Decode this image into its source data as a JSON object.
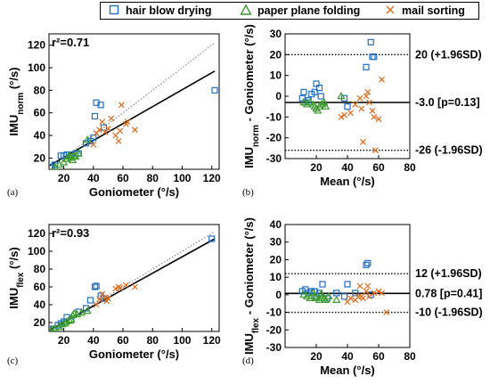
{
  "legend": {
    "items": [
      {
        "label": "hair blow drying",
        "marker": "square",
        "color": "#1f6fc5"
      },
      {
        "label": "paper plane folding",
        "marker": "triangle",
        "color": "#3a9a2a"
      },
      {
        "label": "mail sorting",
        "marker": "x",
        "color": "#e06a1a"
      }
    ]
  },
  "chart_data": [
    {
      "type": "scatter",
      "panel_label": "(a)",
      "annotation": "r²=0.71",
      "xlabel": "Goniometer (°/s)",
      "ylabel_main": "IMU",
      "ylabel_sub": "norm",
      "ylabel_tail": " (°/s)",
      "xlim": [
        10,
        125
      ],
      "ylim": [
        10,
        130
      ],
      "xticks": [
        20,
        40,
        60,
        80,
        100,
        120
      ],
      "yticks": [
        20,
        40,
        60,
        80,
        100,
        120
      ],
      "lines": [
        {
          "kind": "regression",
          "style": "solid",
          "x": [
            10,
            122
          ],
          "y": [
            13,
            97
          ]
        },
        {
          "kind": "identity",
          "style": "dotted",
          "x": [
            10,
            122
          ],
          "y": [
            10,
            122
          ]
        }
      ],
      "series": [
        {
          "name": "hair blow drying",
          "points": [
            [
              11,
              12
            ],
            [
              12,
              12
            ],
            [
              14,
              14
            ],
            [
              18,
              22
            ],
            [
              20,
              22
            ],
            [
              22,
              23
            ],
            [
              25,
              23
            ],
            [
              28,
              24
            ],
            [
              30,
              24
            ],
            [
              35,
              33
            ],
            [
              38,
              35
            ],
            [
              40,
              38
            ],
            [
              41,
              57
            ],
            [
              42,
              69
            ],
            [
              45,
              67
            ],
            [
              47,
              47
            ],
            [
              122,
              80
            ]
          ]
        },
        {
          "name": "paper plane folding",
          "points": [
            [
              14,
              12
            ],
            [
              17,
              14
            ],
            [
              20,
              16
            ],
            [
              22,
              19
            ],
            [
              23,
              21
            ],
            [
              24,
              22
            ],
            [
              25,
              20
            ],
            [
              26,
              18
            ],
            [
              27,
              22
            ],
            [
              28,
              21
            ],
            [
              30,
              24
            ],
            [
              36,
              36
            ]
          ]
        },
        {
          "name": "mail sorting",
          "points": [
            [
              40,
              32
            ],
            [
              42,
              42
            ],
            [
              44,
              45
            ],
            [
              46,
              52
            ],
            [
              48,
              43
            ],
            [
              50,
              46
            ],
            [
              52,
              55
            ],
            [
              55,
              40
            ],
            [
              57,
              35
            ],
            [
              58,
              44
            ],
            [
              59,
              67
            ],
            [
              62,
              50
            ],
            [
              63,
              52
            ],
            [
              68,
              45
            ]
          ]
        }
      ]
    },
    {
      "type": "scatter",
      "panel_label": "(b)",
      "xlabel": "Mean (°/s)",
      "ylabel_main": "IMU",
      "ylabel_sub": "norm",
      "ylabel_tail": " - Goniometer (°/s)",
      "xlim": [
        0,
        80
      ],
      "ylim": [
        -30,
        30
      ],
      "xticks": [
        20,
        40,
        60,
        80
      ],
      "yticks": [
        -30,
        -20,
        -10,
        0,
        10,
        20,
        30
      ],
      "hlines": [
        {
          "y": 20,
          "style": "dotted",
          "label": "20 (+1.96SD)"
        },
        {
          "y": -3,
          "style": "solid",
          "label": "-3.0 [p=0.13]"
        },
        {
          "y": -26,
          "style": "dotted",
          "label": "-26 (-1.96SD)"
        }
      ],
      "series": [
        {
          "name": "hair blow drying",
          "points": [
            [
              11,
              -1
            ],
            [
              12,
              2
            ],
            [
              13,
              -3
            ],
            [
              15,
              -2
            ],
            [
              17,
              1
            ],
            [
              19,
              2
            ],
            [
              20,
              6
            ],
            [
              22,
              4
            ],
            [
              23,
              0
            ],
            [
              38,
              -1
            ],
            [
              40,
              -5
            ],
            [
              52,
              14
            ],
            [
              55,
              26
            ],
            [
              57,
              19
            ],
            [
              56,
              19
            ]
          ]
        },
        {
          "name": "paper plane folding",
          "points": [
            [
              12,
              -3
            ],
            [
              14,
              -4
            ],
            [
              16,
              -3
            ],
            [
              18,
              -4
            ],
            [
              19,
              -5
            ],
            [
              20,
              -6
            ],
            [
              21,
              -7
            ],
            [
              22,
              -5
            ],
            [
              23,
              -4
            ],
            [
              24,
              -4
            ],
            [
              25,
              -3
            ],
            [
              26,
              -5
            ],
            [
              36,
              0
            ]
          ]
        },
        {
          "name": "mail sorting",
          "points": [
            [
              36,
              -10
            ],
            [
              38,
              -9
            ],
            [
              42,
              -8
            ],
            [
              45,
              -4
            ],
            [
              48,
              -1
            ],
            [
              49,
              -6
            ],
            [
              50,
              -22
            ],
            [
              52,
              0
            ],
            [
              53,
              2
            ],
            [
              54,
              -3
            ],
            [
              56,
              -7
            ],
            [
              57,
              -10
            ],
            [
              58,
              -26
            ],
            [
              60,
              -11
            ],
            [
              62,
              8
            ]
          ]
        }
      ]
    },
    {
      "type": "scatter",
      "panel_label": "(c)",
      "annotation": "r²=0.93",
      "xlabel": "Goniometer (°/s)",
      "ylabel_main": "IMU",
      "ylabel_sub": "flex",
      "ylabel_tail": " (°/s)",
      "xlim": [
        10,
        125
      ],
      "ylim": [
        10,
        130
      ],
      "xticks": [
        20,
        40,
        60,
        80,
        100,
        120
      ],
      "yticks": [
        20,
        40,
        60,
        80,
        100,
        120
      ],
      "lines": [
        {
          "kind": "regression",
          "style": "solid",
          "x": [
            10,
            122
          ],
          "y": [
            11,
            114
          ]
        },
        {
          "kind": "identity",
          "style": "dotted",
          "x": [
            10,
            122
          ],
          "y": [
            10,
            122
          ]
        }
      ],
      "series": [
        {
          "name": "hair blow drying",
          "points": [
            [
              11,
              12
            ],
            [
              13,
              13
            ],
            [
              16,
              17
            ],
            [
              18,
              19
            ],
            [
              20,
              21
            ],
            [
              22,
              26
            ],
            [
              25,
              23
            ],
            [
              30,
              32
            ],
            [
              35,
              36
            ],
            [
              38,
              45
            ],
            [
              41,
              60
            ],
            [
              42,
              61
            ],
            [
              45,
              50
            ],
            [
              47,
              47
            ],
            [
              120,
              114
            ]
          ]
        },
        {
          "name": "paper plane folding",
          "points": [
            [
              12,
              12
            ],
            [
              14,
              13
            ],
            [
              17,
              15
            ],
            [
              19,
              18
            ],
            [
              21,
              19
            ],
            [
              22,
              21
            ],
            [
              24,
              22
            ],
            [
              25,
              23
            ],
            [
              26,
              28
            ],
            [
              27,
              30
            ],
            [
              29,
              29
            ],
            [
              32,
              31
            ],
            [
              36,
              33
            ]
          ]
        },
        {
          "name": "mail sorting",
          "points": [
            [
              42,
              40
            ],
            [
              44,
              46
            ],
            [
              46,
              52
            ],
            [
              48,
              48
            ],
            [
              49,
              44
            ],
            [
              50,
              47
            ],
            [
              55,
              58
            ],
            [
              57,
              60
            ],
            [
              58,
              59
            ],
            [
              62,
              62
            ],
            [
              68,
              60
            ]
          ]
        }
      ]
    },
    {
      "type": "scatter",
      "panel_label": "(d)",
      "xlabel": "Mean (°/s)",
      "ylabel_main": "IMU",
      "ylabel_sub": "flex",
      "ylabel_tail": " - Goniometer (°/s)",
      "xlim": [
        0,
        80
      ],
      "ylim": [
        -30,
        40
      ],
      "xticks": [
        20,
        40,
        60,
        80
      ],
      "yticks": [
        -30,
        -20,
        -10,
        0,
        10,
        20,
        30,
        40
      ],
      "hlines": [
        {
          "y": 12,
          "style": "dotted",
          "label": "12 (+1.96SD)"
        },
        {
          "y": 0.78,
          "style": "solid",
          "label": "0.78 [p=0.41]"
        },
        {
          "y": -10,
          "style": "dotted",
          "label": "-10 (-1.96SD)"
        }
      ],
      "series": [
        {
          "name": "hair blow drying",
          "points": [
            [
              11,
              2
            ],
            [
              13,
              3
            ],
            [
              15,
              1
            ],
            [
              17,
              2
            ],
            [
              19,
              2
            ],
            [
              20,
              -1
            ],
            [
              22,
              1
            ],
            [
              24,
              6
            ],
            [
              27,
              -2
            ],
            [
              33,
              1
            ],
            [
              38,
              -1
            ],
            [
              40,
              6
            ],
            [
              45,
              1
            ],
            [
              52,
              17
            ],
            [
              53,
              18
            ],
            [
              55,
              0
            ]
          ]
        },
        {
          "name": "paper plane folding",
          "points": [
            [
              12,
              0
            ],
            [
              14,
              -1
            ],
            [
              16,
              -2
            ],
            [
              18,
              1
            ],
            [
              19,
              -1
            ],
            [
              20,
              -2
            ],
            [
              22,
              -3
            ],
            [
              23,
              0
            ],
            [
              24,
              -1
            ],
            [
              25,
              -2
            ],
            [
              26,
              -3
            ],
            [
              28,
              -1
            ],
            [
              33,
              -3
            ]
          ]
        },
        {
          "name": "mail sorting",
          "points": [
            [
              40,
              -4
            ],
            [
              42,
              -2
            ],
            [
              45,
              -3
            ],
            [
              47,
              -1
            ],
            [
              48,
              5
            ],
            [
              49,
              -1
            ],
            [
              50,
              -2
            ],
            [
              52,
              2
            ],
            [
              53,
              5
            ],
            [
              54,
              -1
            ],
            [
              57,
              1
            ],
            [
              60,
              2
            ],
            [
              62,
              1
            ],
            [
              65,
              -10
            ]
          ]
        }
      ]
    }
  ]
}
